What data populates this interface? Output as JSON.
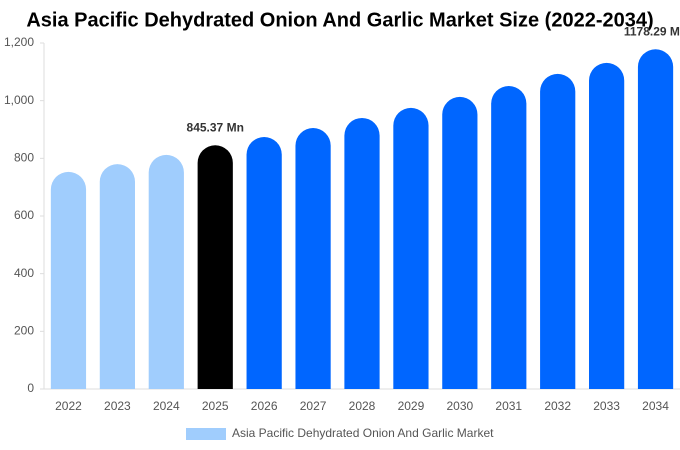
{
  "chart_data": {
    "type": "bar",
    "title": "Asia Pacific Dehydrated Onion And Garlic Market Size (2022-2034)",
    "categories": [
      "2022",
      "2023",
      "2024",
      "2025",
      "2026",
      "2027",
      "2028",
      "2029",
      "2030",
      "2031",
      "2032",
      "2033",
      "2034"
    ],
    "series": [
      {
        "name": "Asia Pacific Dehydrated Onion And Garlic Market",
        "color": "#a0cdfd",
        "values": [
          753,
          780,
          812,
          845.37,
          874,
          905,
          940,
          975,
          1013,
          1051,
          1093,
          1131,
          1178.29
        ],
        "value_labels": [
          null,
          null,
          null,
          "845.37 Mn",
          null,
          null,
          null,
          null,
          null,
          null,
          null,
          null,
          "1178.29 Mn"
        ],
        "colors": [
          "#a0cdfd",
          "#a0cdfd",
          "#a0cdfd",
          "#000000",
          "#0066ff",
          "#0066ff",
          "#0066ff",
          "#0066ff",
          "#0066ff",
          "#0066ff",
          "#0066ff",
          "#0066ff",
          "#0066ff"
        ]
      }
    ],
    "ylim": [
      0,
      1200
    ],
    "yticks": [
      0,
      200,
      400,
      600,
      800,
      {
        "value": 1000,
        "label": "1,000"
      },
      {
        "value": 1200,
        "label": "1,200"
      }
    ],
    "grid": false
  }
}
